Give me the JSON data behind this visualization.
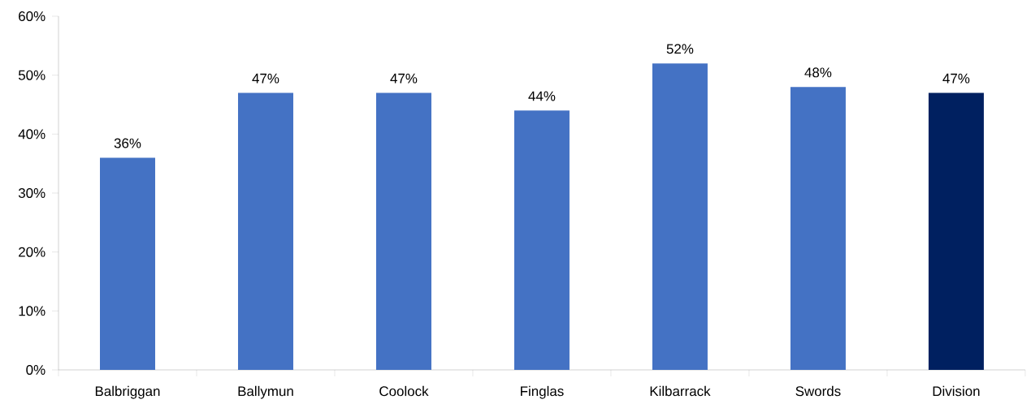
{
  "chart_data": {
    "type": "bar",
    "categories": [
      "Balbriggan",
      "Ballymun",
      "Coolock",
      "Finglas",
      "Kilbarrack",
      "Swords",
      "Division"
    ],
    "values": [
      36,
      47,
      47,
      44,
      52,
      48,
      47
    ],
    "value_labels": [
      "36%",
      "47%",
      "47%",
      "44%",
      "52%",
      "48%",
      "47%"
    ],
    "colors": [
      "#4472c4",
      "#4472c4",
      "#4472c4",
      "#4472c4",
      "#4472c4",
      "#4472c4",
      "#002060"
    ],
    "ylim": [
      0,
      60
    ],
    "yticks": [
      {
        "value": 0,
        "label": "0%"
      },
      {
        "value": 10,
        "label": "10%"
      },
      {
        "value": 20,
        "label": "20%"
      },
      {
        "value": 30,
        "label": "30%"
      },
      {
        "value": 40,
        "label": "40%"
      },
      {
        "value": 50,
        "label": "50%"
      },
      {
        "value": 60,
        "label": "60%"
      }
    ],
    "grid": false
  }
}
